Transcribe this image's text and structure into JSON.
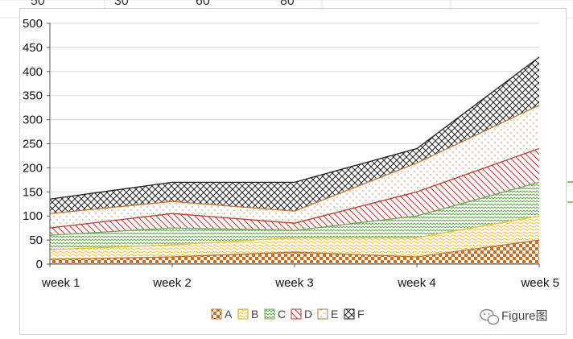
{
  "chart_data": {
    "type": "area",
    "stacked": true,
    "categories": [
      "week 1",
      "week 2",
      "week 3",
      "week 4",
      "week 5"
    ],
    "series": [
      {
        "name": "A",
        "values": [
          10,
          15,
          25,
          15,
          50
        ],
        "color": "#c8702a",
        "pattern": "checker"
      },
      {
        "name": "B",
        "values": [
          20,
          25,
          30,
          40,
          50
        ],
        "color": "#e8c030",
        "pattern": "wave"
      },
      {
        "name": "C",
        "values": [
          30,
          35,
          15,
          45,
          70
        ],
        "color": "#6aa84f",
        "pattern": "zigzag"
      },
      {
        "name": "D",
        "values": [
          15,
          30,
          15,
          50,
          70
        ],
        "color": "#c0392b",
        "pattern": "diagonal"
      },
      {
        "name": "E",
        "values": [
          30,
          25,
          25,
          60,
          90
        ],
        "color": "#c0752a",
        "pattern": "dots"
      },
      {
        "name": "F",
        "values": [
          30,
          40,
          60,
          30,
          100
        ],
        "color": "#222222",
        "pattern": "lattice"
      }
    ],
    "top_outline_color": "#222222",
    "ylim": [
      0,
      500
    ],
    "yticks": [
      "0",
      "50",
      "100",
      "150",
      "200",
      "250",
      "300",
      "350",
      "400",
      "450",
      "500"
    ],
    "grid": true,
    "legend_position": "bottom",
    "title": "",
    "xlabel": "",
    "ylabel": ""
  },
  "spreadsheet_header": {
    "visible_numbers": [
      "50",
      "30",
      "60",
      "80"
    ]
  },
  "watermark": {
    "text": "Figure图"
  }
}
